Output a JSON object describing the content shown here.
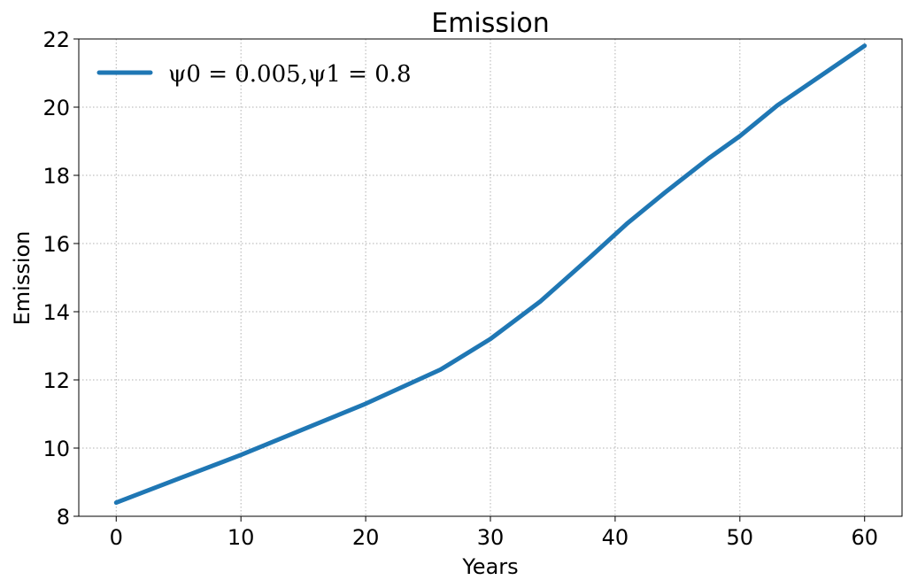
{
  "chart_data": {
    "type": "line",
    "title": "Emission",
    "xlabel": "Years",
    "ylabel": "Emission",
    "xlim": [
      -3,
      63
    ],
    "ylim": [
      8,
      22
    ],
    "xticks": [
      0,
      10,
      20,
      30,
      40,
      50,
      60
    ],
    "yticks": [
      8,
      10,
      12,
      14,
      16,
      18,
      20,
      22
    ],
    "grid": true,
    "legend_position": "top-left",
    "series": [
      {
        "name": "ψ0 = 0.005,ψ1 = 0.8",
        "color": "#1f77b4",
        "x": [
          0,
          5,
          10,
          15,
          20,
          26,
          30,
          34,
          38,
          41,
          44,
          47.5,
          50,
          53,
          57,
          60
        ],
        "y": [
          8.4,
          9.1,
          9.8,
          10.55,
          11.3,
          12.3,
          13.2,
          14.3,
          15.6,
          16.6,
          17.5,
          18.5,
          19.15,
          20.05,
          21.05,
          21.8
        ]
      }
    ]
  }
}
